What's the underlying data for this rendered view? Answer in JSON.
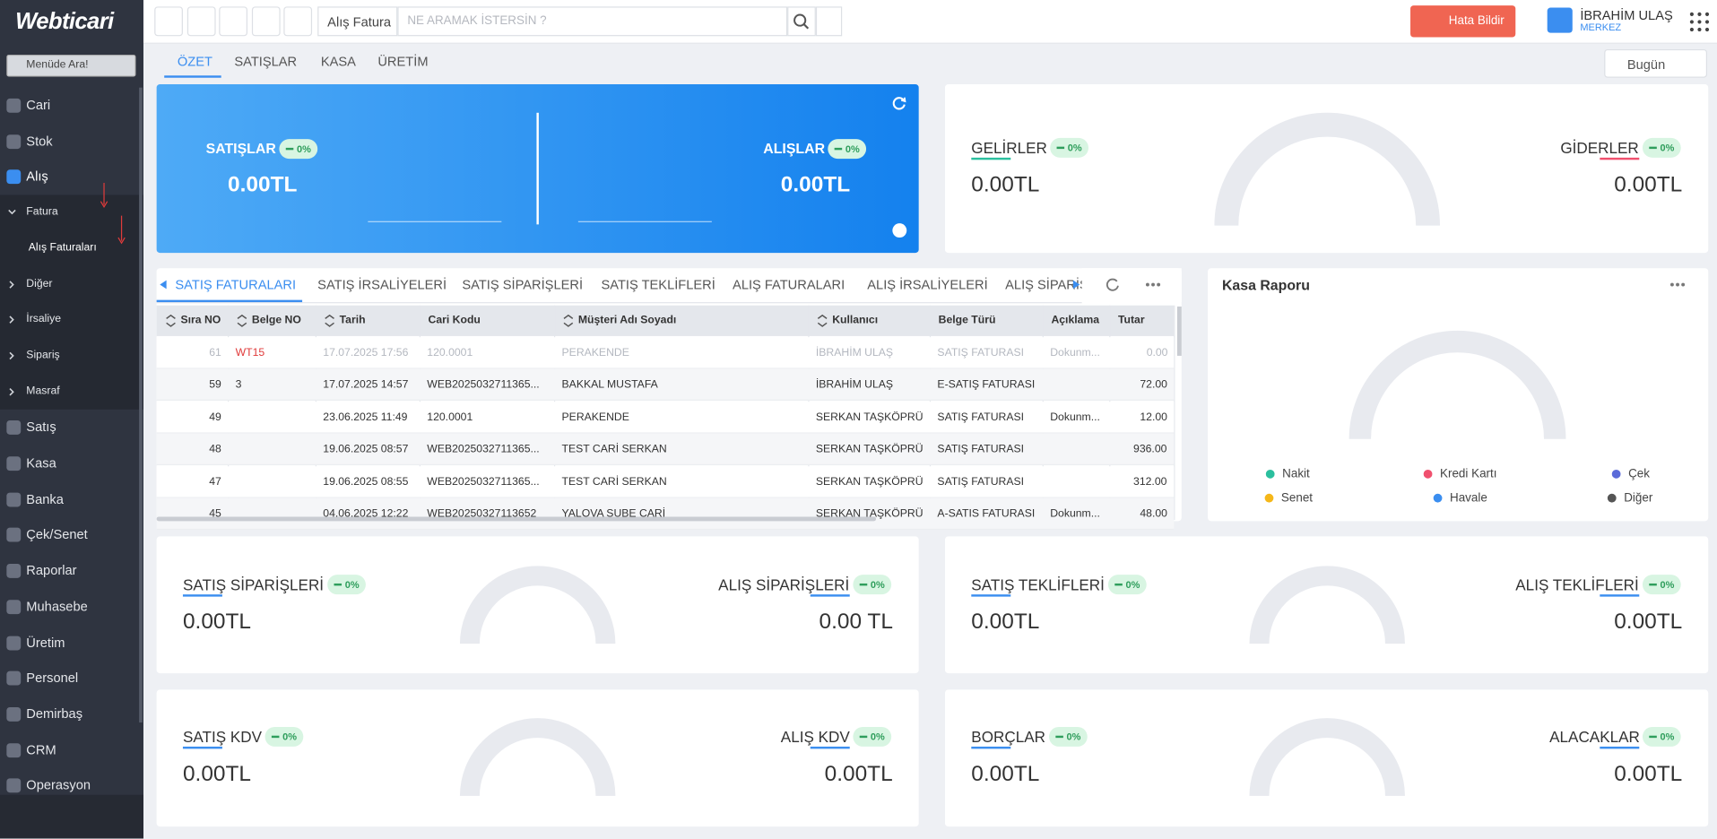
{
  "brand": "Webticari",
  "sidebar": {
    "search": "Menüde Ara!",
    "menu": [
      {
        "label": "Cari"
      },
      {
        "label": "Stok"
      },
      {
        "label": "Alış",
        "children": [
          {
            "label": "Fatura",
            "children": [
              {
                "label": "Alış Faturaları"
              }
            ]
          },
          {
            "label": "Diğer"
          },
          {
            "label": "İrsaliye"
          },
          {
            "label": "Sipariş"
          },
          {
            "label": "Masraf"
          }
        ]
      },
      {
        "label": "Satış"
      },
      {
        "label": "Kasa"
      },
      {
        "label": "Banka"
      },
      {
        "label": "Çek/Senet"
      },
      {
        "label": "Raporlar"
      },
      {
        "label": "Muhasebe"
      },
      {
        "label": "Üretim"
      },
      {
        "label": "Personel"
      },
      {
        "label": "Demirbaş"
      },
      {
        "label": "CRM"
      },
      {
        "label": "Operasyon"
      }
    ]
  },
  "topbar": {
    "document_type": "Alış Fatura",
    "search": "NE ARAMAK İSTERSİN ?",
    "report_button": "Hata Bildir",
    "user": "İBRAHİM ULAŞ",
    "branch": "MERKEZ"
  },
  "tabs": [
    "ÖZET",
    "SATIŞLAR",
    "KASA",
    "ÜRETİM"
  ],
  "period": "Bugün",
  "hero": {
    "left": {
      "label": "SATIŞLAR",
      "badge": "0%",
      "value": "0.00TL"
    },
    "right": {
      "label": "ALIŞLAR",
      "badge": "0%",
      "value": "0.00TL"
    }
  },
  "cards": [
    {
      "left": {
        "label": "GELİRLER",
        "badge": "0%",
        "value": "0.00TL"
      },
      "right": {
        "label": "GİDERLER",
        "badge": "0%",
        "value": "0.00TL"
      }
    },
    {
      "left": {
        "label": "SATIŞ SİPARİŞLERİ",
        "badge": "0%",
        "value": "0.00TL"
      },
      "right": {
        "label": "ALIŞ SİPARİŞLERİ",
        "badge": "0%",
        "value": "0.00 TL"
      }
    },
    {
      "left": {
        "label": "SATIŞ TEKLİFLERİ",
        "badge": "0%",
        "value": "0.00TL"
      },
      "right": {
        "label": "ALIŞ TEKLİFLERİ",
        "badge": "0%",
        "value": "0.00TL"
      }
    },
    {
      "left": {
        "label": "SATIŞ KDV",
        "badge": "0%",
        "value": "0.00TL"
      },
      "right": {
        "label": "ALIŞ KDV",
        "badge": "0%",
        "value": "0.00TL"
      }
    },
    {
      "left": {
        "label": "BORÇLAR",
        "badge": "0%",
        "value": "0.00TL"
      },
      "right": {
        "label": "ALACAKLAR",
        "badge": "0%",
        "value": "0.00TL"
      }
    }
  ],
  "documents": {
    "tabs": [
      "SATIŞ FATURALARI",
      "SATIŞ İRSALİYELERİ",
      "SATIŞ SİPARİŞLERİ",
      "SATIŞ TEKLİFLERİ",
      "ALIŞ FATURALARI",
      "ALIŞ İRSALİYELERİ",
      "ALIŞ SİPARİŞLERİ"
    ],
    "table": {
      "columns": [
        "Sıra NO",
        "Belge NO",
        "Tarih",
        "Cari Kodu",
        "Müşteri Adı Soyadı",
        "Kullanıcı",
        "Belge Türü",
        "Açıklama",
        "Tutar"
      ],
      "rows": [
        [
          61,
          "WT15",
          "17.07.2025 17:56",
          "120.0001",
          "PERAKENDE",
          "İBRAHİM ULAŞ",
          "SATIŞ FATURASI",
          "Dokunm...",
          "0.00"
        ],
        [
          59,
          "3",
          "17.07.2025 14:57",
          "WEB2025032711365...",
          "BAKKAL MUSTAFA",
          "İBRAHİM ULAŞ",
          "E-SATIŞ FATURASI",
          null,
          "72.00"
        ],
        [
          49,
          null,
          "23.06.2025 11:49",
          "120.0001",
          "PERAKENDE",
          "SERKAN TAŞKÖPRÜ",
          "SATIŞ FATURASI",
          "Dokunm...",
          "12.00"
        ],
        [
          48,
          null,
          "19.06.2025 08:57",
          "WEB2025032711365...",
          "TEST CARİ SERKAN",
          "SERKAN TAŞKÖPRÜ",
          "SATIŞ FATURASI",
          null,
          "936.00"
        ],
        [
          47,
          null,
          "19.06.2025 08:55",
          "WEB2025032711365...",
          "TEST CARİ SERKAN",
          "SERKAN TAŞKÖPRÜ",
          "SATIŞ FATURASI",
          null,
          "312.00"
        ],
        [
          45,
          null,
          "04.06.2025 12:22",
          "WEB20250327113652",
          "YALOVA SUBE CARİ",
          "SERKAN TAŞKÖPRÜ",
          "A-SATIS FATURASI",
          "Dokunm...",
          "48.00"
        ]
      ]
    }
  },
  "cash_report": {
    "title": "Kasa Raporu",
    "legend": [
      "Nakit",
      "Kredi Kartı",
      "Çek",
      "Senet",
      "Havale",
      "Diğer"
    ]
  }
}
